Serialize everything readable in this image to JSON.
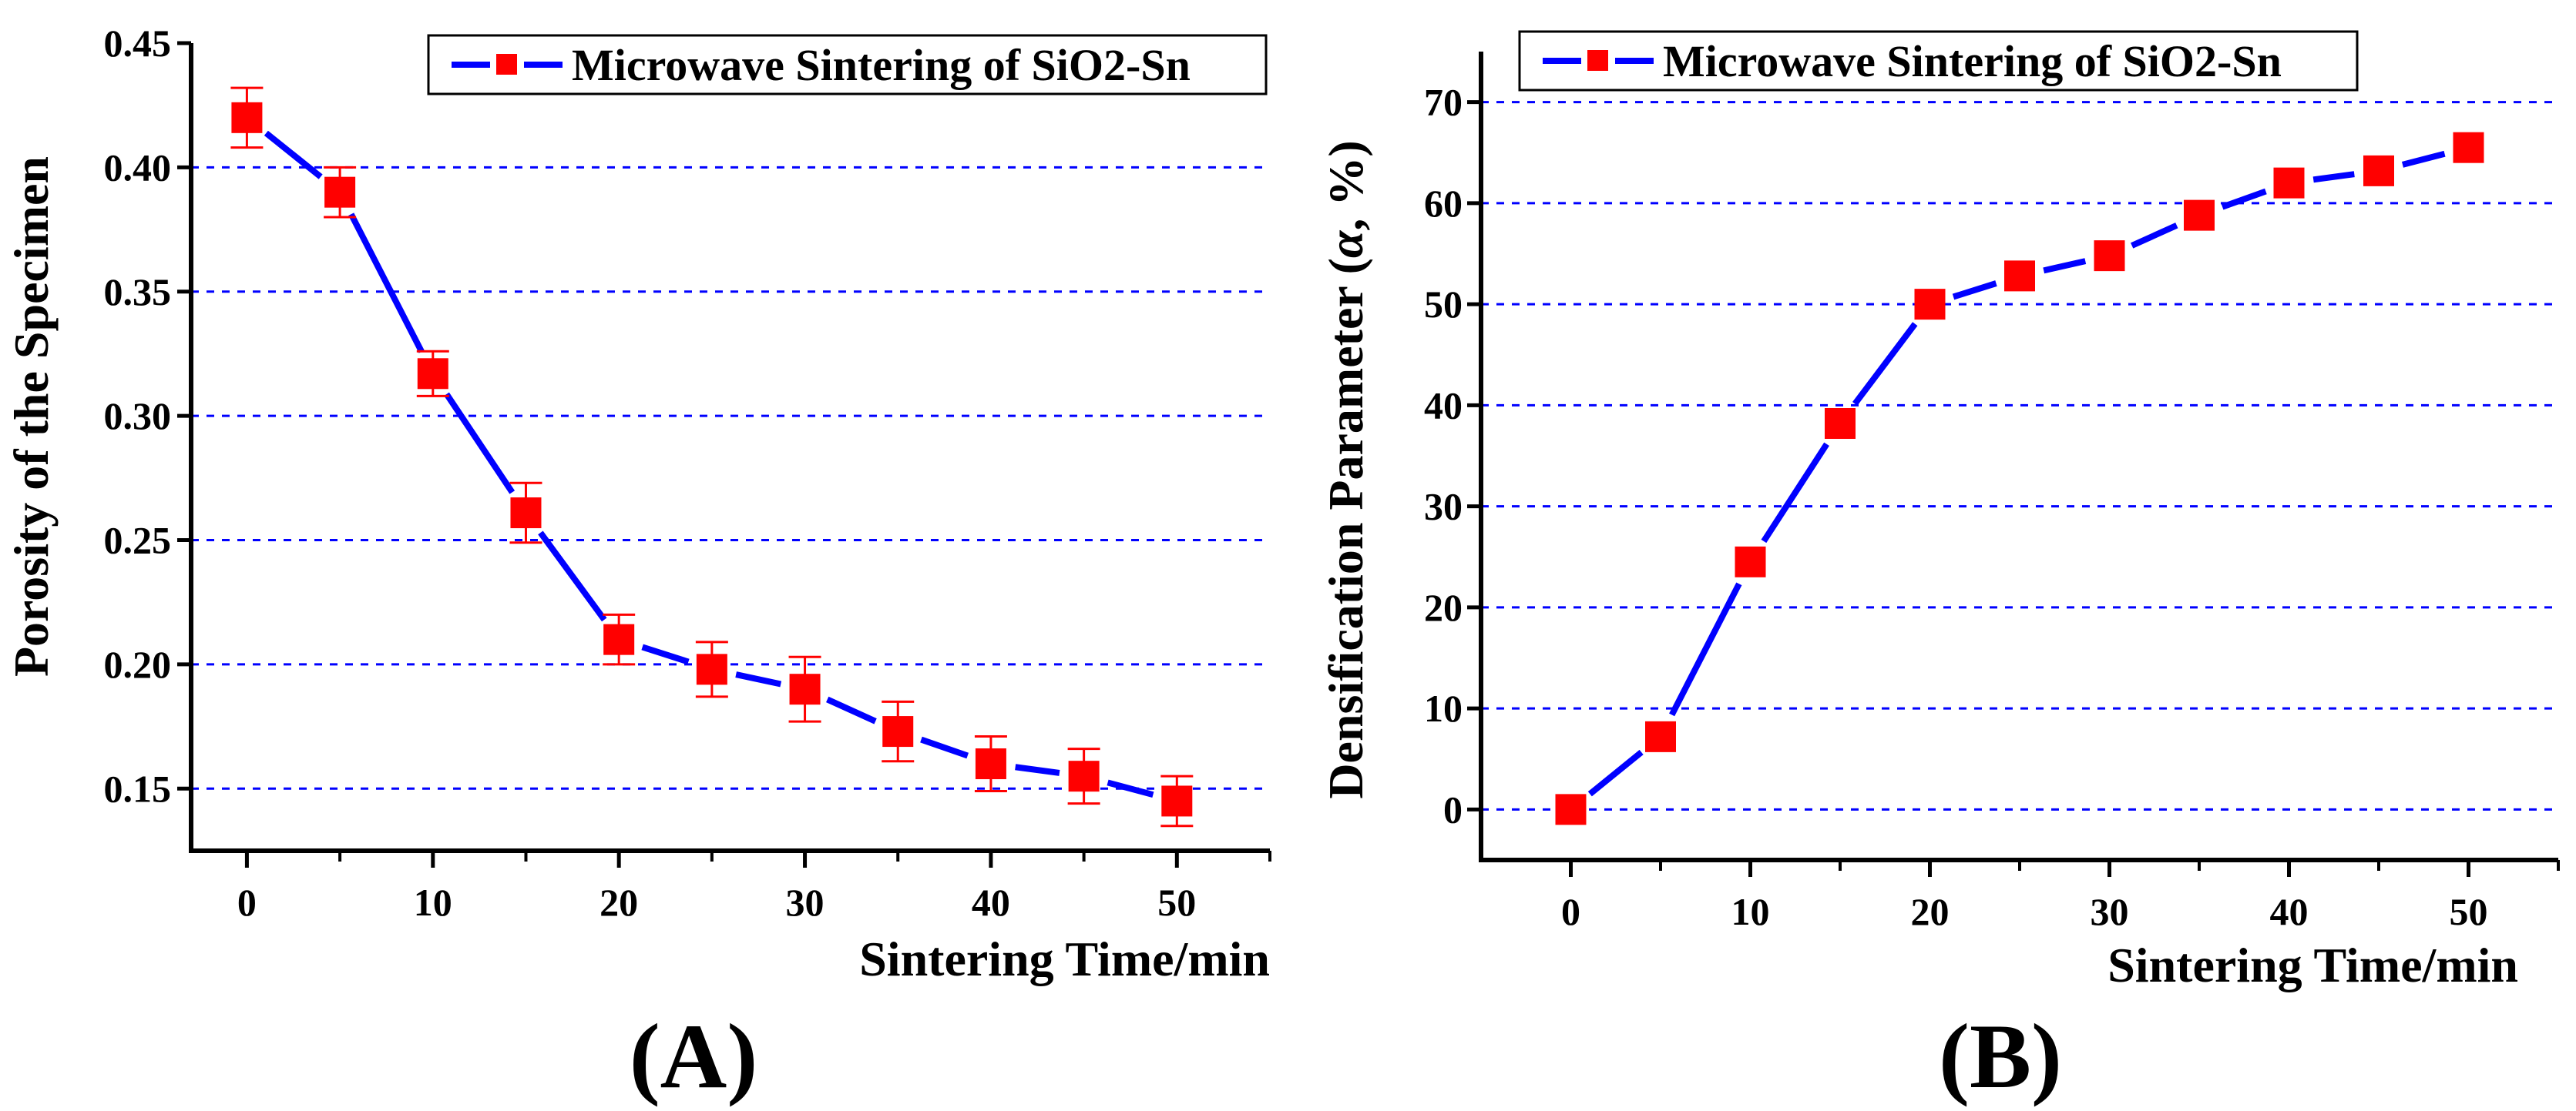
{
  "chart_data": [
    {
      "type": "line",
      "panel_label": "(A)",
      "xlabel": "Sintering Time/min",
      "ylabel": "Porosity of the Specimen",
      "xlim": [
        -3,
        55
      ],
      "ylim": [
        0.125,
        0.45
      ],
      "xticks": [
        0,
        10,
        20,
        30,
        40,
        50
      ],
      "xtick_labels": [
        "0",
        "10",
        "20",
        "30",
        "40",
        "50"
      ],
      "yticks": [
        0.15,
        0.2,
        0.25,
        0.3,
        0.35,
        0.4,
        0.45
      ],
      "ytick_labels": [
        "0.15",
        "0.20",
        "0.25",
        "0.30",
        "0.35",
        "0.40",
        "0.45"
      ],
      "grid": "horizontal dashed",
      "legend": {
        "position": "top-right",
        "label": "Microwave Sintering of SiO2-Sn"
      },
      "series": [
        {
          "name": "Microwave Sintering of SiO2-Sn",
          "x": [
            0,
            5,
            10,
            15,
            20,
            25,
            30,
            35,
            40,
            45,
            50
          ],
          "y": [
            0.42,
            0.39,
            0.317,
            0.261,
            0.21,
            0.198,
            0.19,
            0.173,
            0.16,
            0.155,
            0.145
          ],
          "error": [
            0.012,
            0.01,
            0.009,
            0.012,
            0.01,
            0.011,
            0.013,
            0.012,
            0.011,
            0.011,
            0.01
          ],
          "line_color": "#0000ff",
          "marker_color": "#ff0000"
        }
      ]
    },
    {
      "type": "line",
      "panel_label": "(B)",
      "xlabel": "Sintering Time/min",
      "ylabel": "Densification Parameter (",
      "ylabel_symbol": "α",
      "ylabel_unit": ", %)",
      "xlim": [
        -5,
        55
      ],
      "ylim": [
        -5,
        75
      ],
      "xticks": [
        0,
        10,
        20,
        30,
        40,
        50
      ],
      "xtick_labels": [
        "0",
        "10",
        "20",
        "30",
        "40",
        "50"
      ],
      "yticks": [
        0,
        10,
        20,
        30,
        40,
        50,
        60,
        70
      ],
      "ytick_labels": [
        "0",
        "10",
        "20",
        "30",
        "40",
        "50",
        "60",
        "70"
      ],
      "grid": "horizontal dashed",
      "legend": {
        "position": "top",
        "label": "Microwave Sintering of SiO2-Sn"
      },
      "series": [
        {
          "name": "Microwave Sintering of SiO2-Sn",
          "x": [
            0,
            5,
            10,
            15,
            20,
            25,
            30,
            35,
            40,
            45,
            50
          ],
          "y": [
            0,
            7.2,
            24.5,
            38.2,
            50.0,
            52.8,
            54.8,
            58.8,
            62.0,
            63.2,
            65.5
          ],
          "line_color": "#0000ff",
          "marker_color": "#ff0000"
        }
      ]
    }
  ]
}
